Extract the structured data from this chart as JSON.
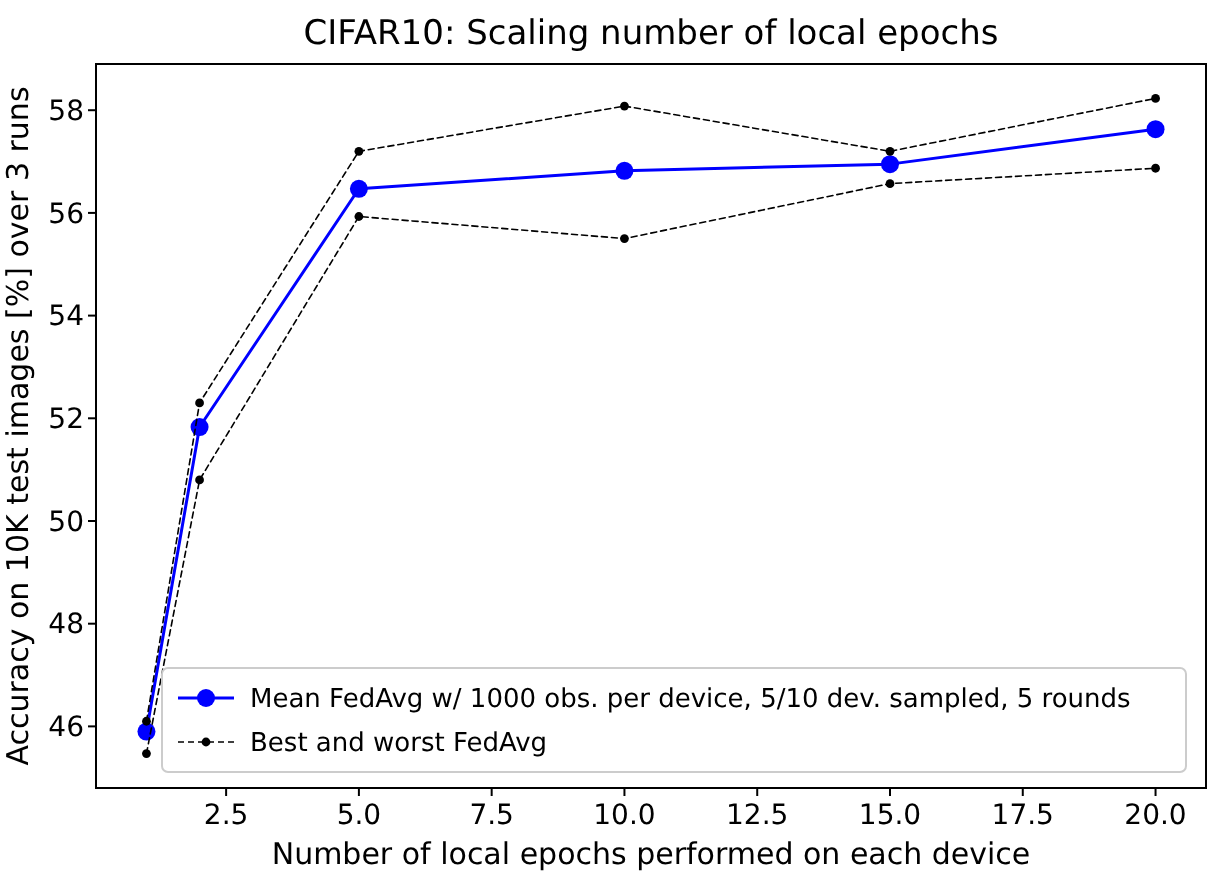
{
  "chart_data": {
    "type": "line",
    "title": "CIFAR10: Scaling number of local epochs",
    "xlabel": "Number of local epochs performed on each device",
    "ylabel": "Accuracy on 10K test images [%] over 3 runs",
    "x": [
      1,
      2,
      5,
      10,
      15,
      20
    ],
    "series": [
      {
        "name": "Mean FedAvg w/ 1000 obs. per device, 5/10 dev. sampled, 5 rounds",
        "color": "#0000ff",
        "values": [
          45.9,
          51.83,
          56.47,
          56.82,
          56.95,
          57.63
        ],
        "line_style": "solid",
        "marker": "circle"
      },
      {
        "name": "Best and worst FedAvg",
        "color": "#000000",
        "values": [
          46.1,
          52.3,
          57.2,
          58.08,
          57.2,
          58.23
        ],
        "line_style": "dashed",
        "marker": "circle"
      },
      {
        "color": "#000000",
        "values": [
          45.47,
          50.8,
          55.93,
          55.5,
          56.57,
          56.87
        ],
        "line_style": "dashed",
        "marker": "circle"
      }
    ],
    "xlim": [
      0.05,
      20.95
    ],
    "ylim": [
      44.8,
      58.9
    ],
    "xticks": [
      {
        "value": 2.5,
        "label": "2.5"
      },
      {
        "value": 5,
        "label": "5.0"
      },
      {
        "value": 7.5,
        "label": "7.5"
      },
      {
        "value": 10,
        "label": "10.0"
      },
      {
        "value": 12.5,
        "label": "12.5"
      },
      {
        "value": 15,
        "label": "15.0"
      },
      {
        "value": 17.5,
        "label": "17.5"
      },
      {
        "value": 20,
        "label": "20.0"
      }
    ],
    "yticks": [
      46,
      48,
      50,
      52,
      54,
      56,
      58
    ],
    "grid": false,
    "legend": "bottom right"
  }
}
